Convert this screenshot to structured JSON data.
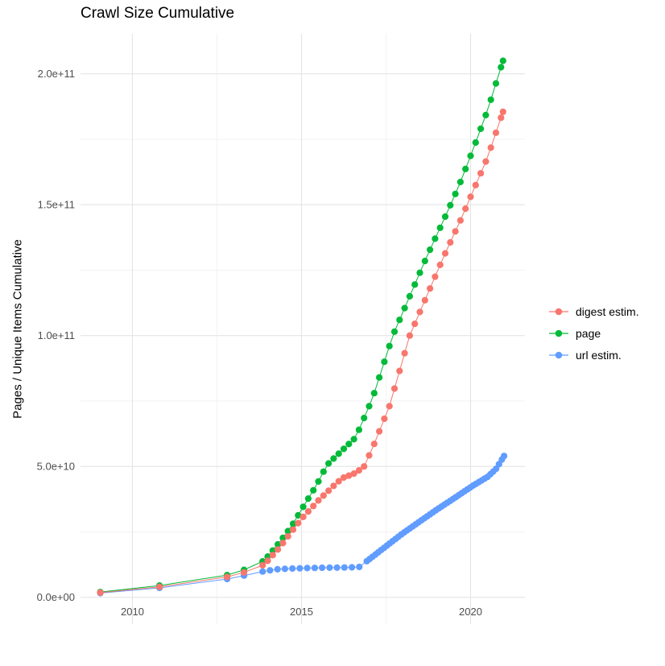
{
  "title": "Crawl Size Cumulative",
  "axes": {
    "y_label": "Pages / Unique Items Cumulative",
    "x_label": "",
    "y_ticks": [
      {
        "value": 0,
        "label": "0.0e+00"
      },
      {
        "value": 50000000000.0,
        "label": "5.0e+10"
      },
      {
        "value": 100000000000.0,
        "label": "1.0e+11"
      },
      {
        "value": 150000000000.0,
        "label": "1.5e+11"
      },
      {
        "value": 200000000000.0,
        "label": "2.0e+11"
      }
    ],
    "y_minor_ticks": [
      25000000000.0,
      75000000000.0,
      125000000000.0,
      175000000000.0
    ],
    "x_ticks": [
      {
        "value": 2010,
        "label": "2010"
      },
      {
        "value": 2015,
        "label": "2015"
      },
      {
        "value": 2020,
        "label": "2020"
      }
    ],
    "x_minor_ticks": [
      2012.5,
      2017.5
    ]
  },
  "legend": {
    "position": "right-center",
    "items": [
      {
        "label": "digest estim.",
        "color": "#F8766D"
      },
      {
        "label": "page",
        "color": "#00BA38"
      },
      {
        "label": "url estim.",
        "color": "#619CFF"
      }
    ]
  },
  "colors": {
    "background": "#FFFFFF",
    "grid_major": "#E4E4E4",
    "grid_minor": "#F0F0F0",
    "tick_label": "#4D4D4D",
    "digest": "#F8766D",
    "page": "#00BA38",
    "url": "#619CFF"
  },
  "chart_data": {
    "type": "line",
    "title": "Crawl Size Cumulative",
    "xlabel": "",
    "ylabel": "Pages / Unique Items Cumulative",
    "xlim": [
      2008.5,
      2021.6
    ],
    "ylim": [
      -10000000000.0,
      215000000000.0
    ],
    "grid": "major+minor",
    "legend_position": "right",
    "marker_style": "filled-circle-with-line",
    "series": [
      {
        "name": "digest estim.",
        "color": "#F8766D",
        "points": [
          [
            2009.05,
            1800000000.0
          ],
          [
            2010.8,
            4000000000.0
          ],
          [
            2012.8,
            7800000000.0
          ],
          [
            2013.3,
            9500000000.0
          ],
          [
            2013.9,
            12500000000.0
          ],
          [
            2014.35,
            19000000000.0
          ],
          [
            2014.7,
            25000000000.0
          ],
          [
            2015.0,
            30000000000.0
          ],
          [
            2015.5,
            37000000000.0
          ],
          [
            2015.9,
            42000000000.0
          ],
          [
            2016.2,
            45500000000.0
          ],
          [
            2016.6,
            47500000000.0
          ],
          [
            2016.85,
            50000000000.0
          ],
          [
            2017.1,
            57000000000.0
          ],
          [
            2017.6,
            73000000000.0
          ],
          [
            2018.2,
            100000000000.0
          ],
          [
            2018.7,
            115000000000.0
          ],
          [
            2019.2,
            130000000000.0
          ],
          [
            2019.7,
            144000000000.0
          ],
          [
            2020.0,
            153000000000.0
          ],
          [
            2020.5,
            168000000000.0
          ],
          [
            2020.96,
            185500000000.0
          ]
        ]
      },
      {
        "name": "page",
        "color": "#00BA38",
        "points": [
          [
            2009.05,
            2000000000.0
          ],
          [
            2010.8,
            4500000000.0
          ],
          [
            2012.8,
            8500000000.0
          ],
          [
            2013.3,
            10500000000.0
          ],
          [
            2013.9,
            14000000000.0
          ],
          [
            2014.35,
            21000000000.0
          ],
          [
            2014.7,
            27000000000.0
          ],
          [
            2015.0,
            33500000000.0
          ],
          [
            2015.45,
            43000000000.0
          ],
          [
            2015.75,
            50500000000.0
          ],
          [
            2016.15,
            55500000000.0
          ],
          [
            2016.6,
            61000000000.0
          ],
          [
            2017.1,
            76000000000.0
          ],
          [
            2017.7,
            100000000000.0
          ],
          [
            2018.2,
            115000000000.0
          ],
          [
            2018.7,
            130000000000.0
          ],
          [
            2019.2,
            144000000000.0
          ],
          [
            2019.65,
            157000000000.0
          ],
          [
            2020.1,
            172000000000.0
          ],
          [
            2020.5,
            186000000000.0
          ],
          [
            2020.96,
            205000000000.0
          ]
        ]
      },
      {
        "name": "url estim.",
        "color": "#619CFF",
        "points": [
          [
            2009.05,
            1600000000.0
          ],
          [
            2010.8,
            3600000000.0
          ],
          [
            2012.8,
            7000000000.0
          ],
          [
            2013.3,
            8300000000.0
          ],
          [
            2013.9,
            10000000000.0
          ],
          [
            2014.35,
            10800000000.0
          ],
          [
            2015.0,
            11100000000.0
          ],
          [
            2015.6,
            11300000000.0
          ],
          [
            2016.3,
            11400000000.0
          ],
          [
            2016.7,
            11500000000.0
          ],
          [
            2016.85,
            13000000000.0
          ],
          [
            2017.1,
            15500000000.0
          ],
          [
            2017.5,
            19500000000.0
          ],
          [
            2018.0,
            24500000000.0
          ],
          [
            2018.5,
            29000000000.0
          ],
          [
            2019.0,
            33500000000.0
          ],
          [
            2019.65,
            39000000000.0
          ],
          [
            2020.05,
            42500000000.0
          ],
          [
            2020.5,
            46000000000.0
          ],
          [
            2020.75,
            49000000000.0
          ],
          [
            2020.99,
            54000000000.0
          ]
        ]
      }
    ]
  }
}
